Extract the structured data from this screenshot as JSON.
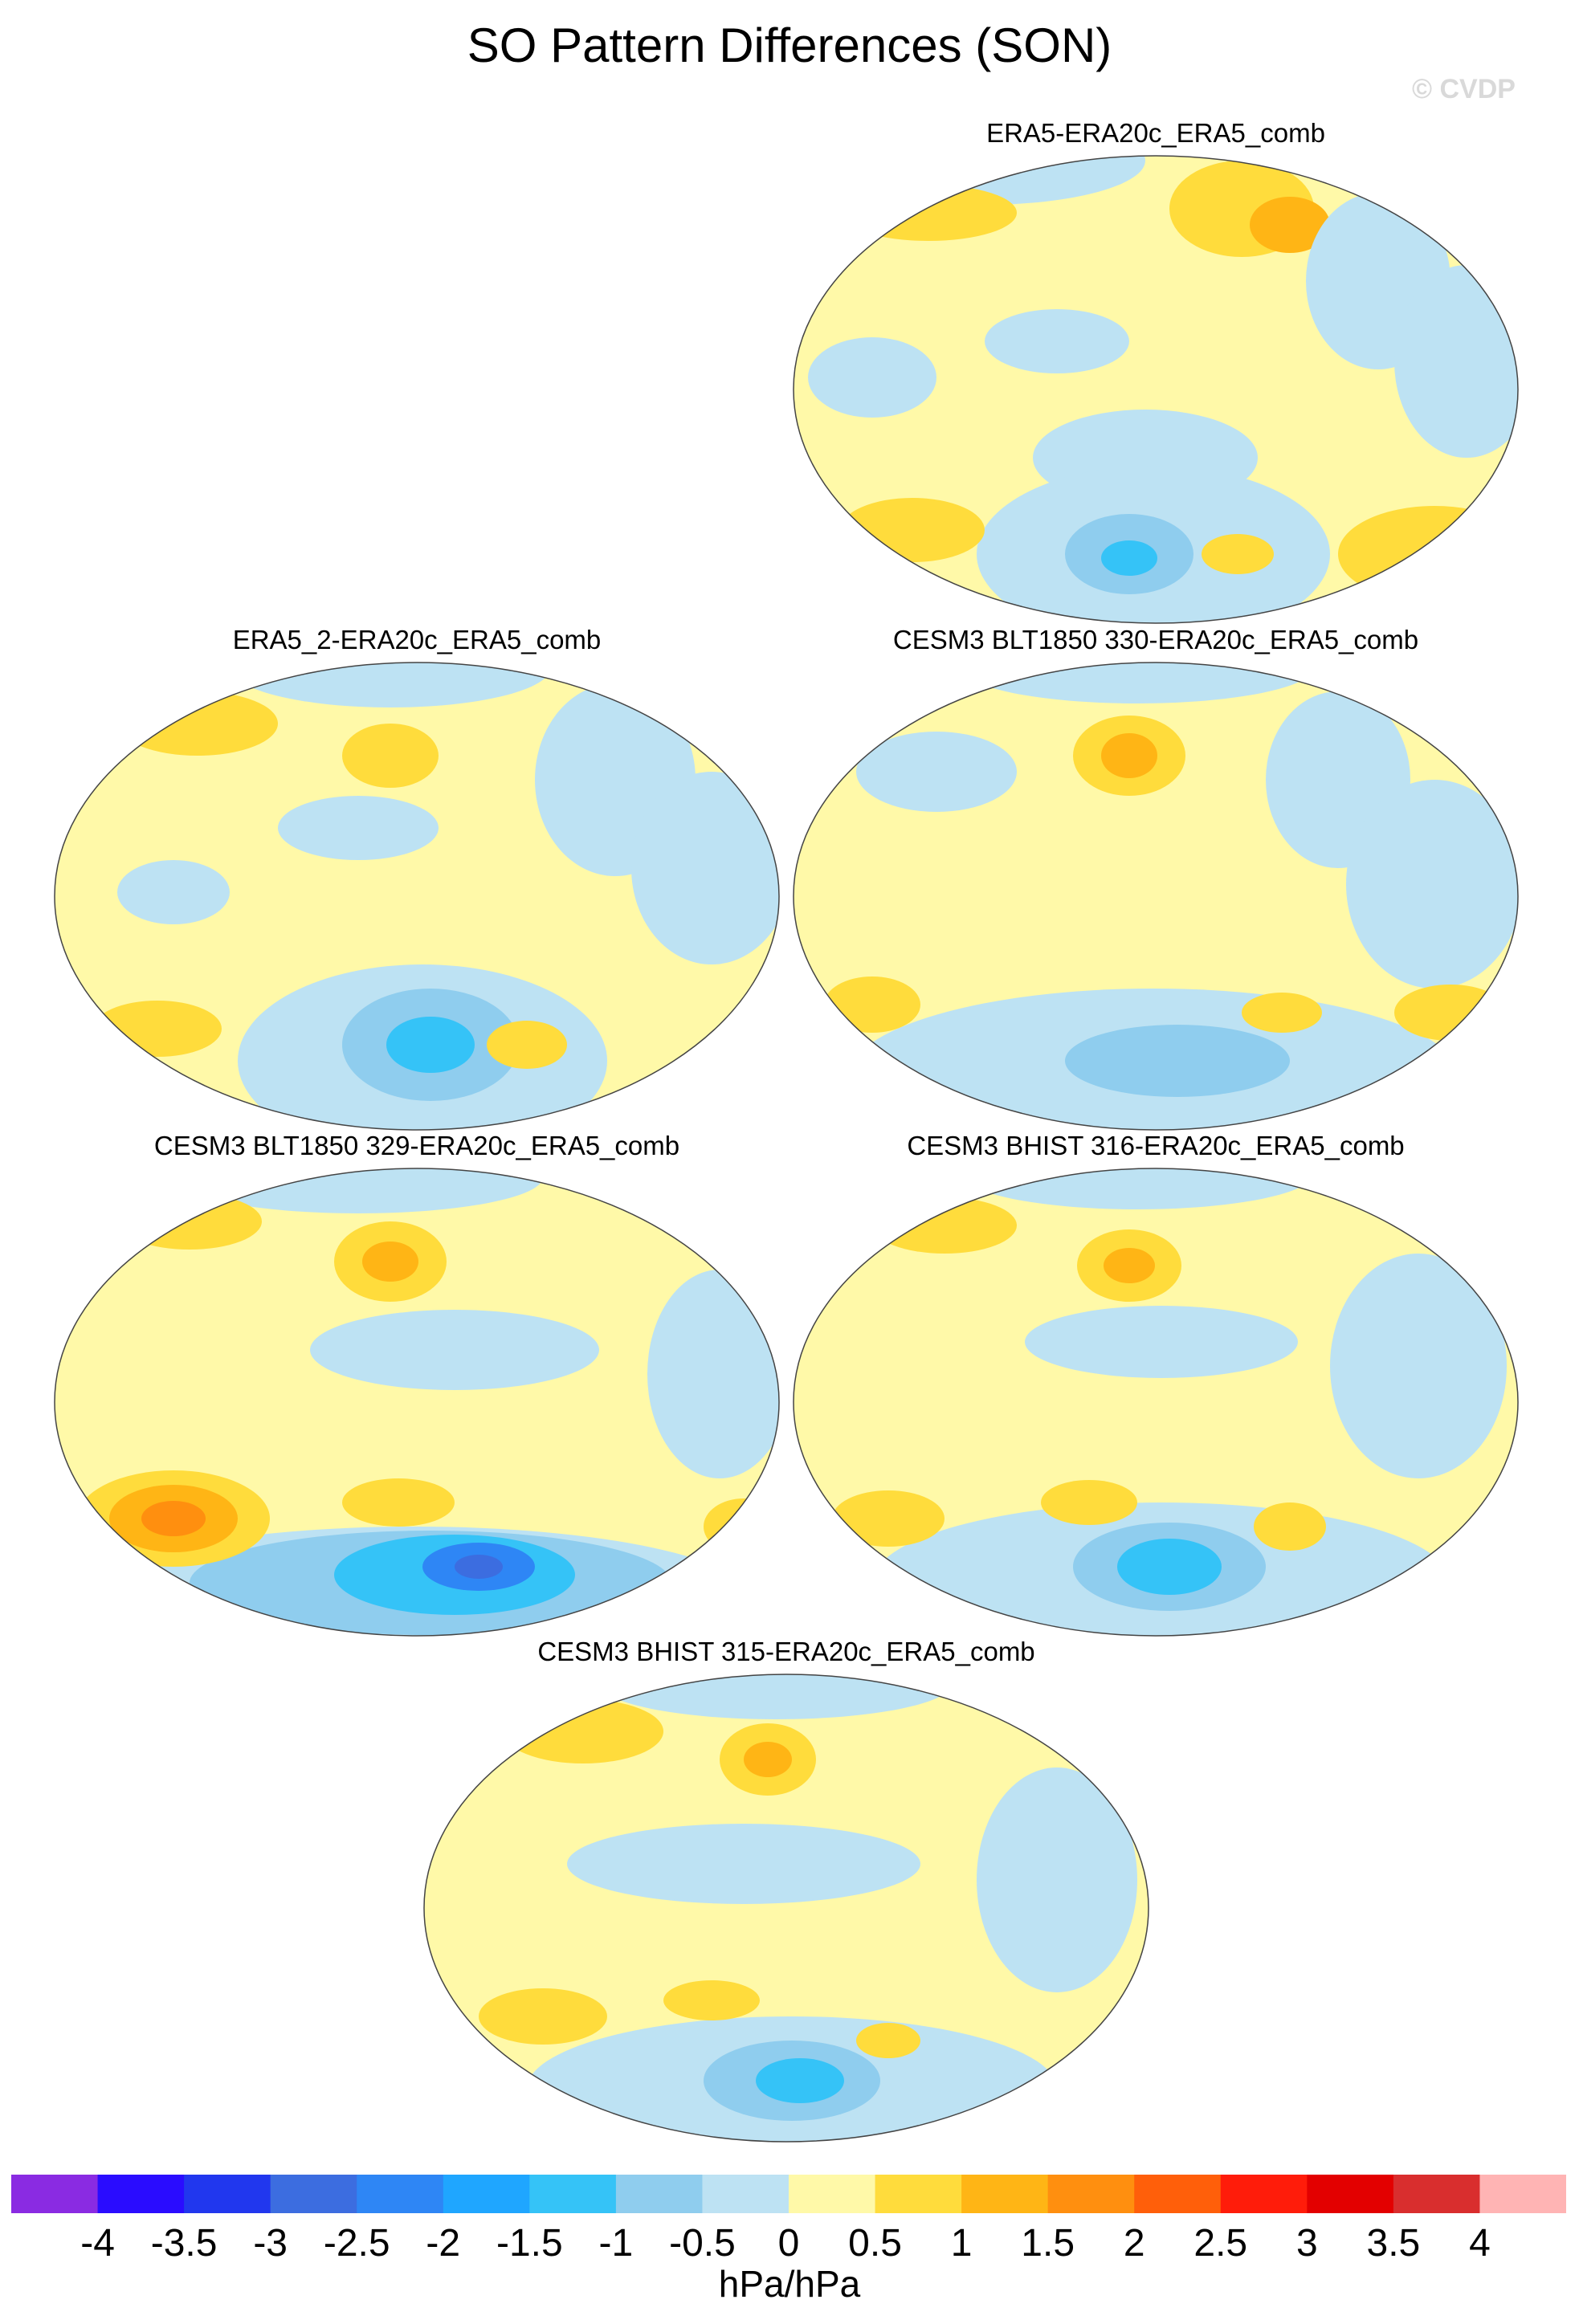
{
  "title": "SO Pattern Differences (SON)",
  "watermark": "© CVDP",
  "panels": [
    {
      "label": "ERA5-ERA20c_ERA5_comb",
      "dominant_field": "positive-light",
      "features": [
        "negative low east of Drake Passage",
        "positive highs over North Pacific and Kamchatka",
        "negative over Atlantic and Arctic"
      ]
    },
    {
      "label": "ERA5_2-ERA20c_ERA5_comb",
      "dominant_field": "positive-light",
      "features": [
        "negative low in south Pacific",
        "positive high near Aleutians"
      ]
    },
    {
      "label": "CESM3 BLT1850 330-ERA20c_ERA5_comb",
      "dominant_field": "positive-light",
      "features": [
        "positive high over Aleutians",
        "negative over Southern Ocean"
      ]
    },
    {
      "label": "CESM3 BLT1850 329-ERA20c_ERA5_comb",
      "dominant_field": "positive-light",
      "features": [
        "strong positive high south of Australia",
        "strong negative low in Amundsen Sea"
      ]
    },
    {
      "label": "CESM3 BHIST 316-ERA20c_ERA5_comb",
      "dominant_field": "positive-light",
      "features": [
        "positive high over Aleutians",
        "negative low in south Pacific"
      ]
    },
    {
      "label": "CESM3 BHIST 315-ERA20c_ERA5_comb",
      "dominant_field": "positive-light",
      "features": [
        "positive high over Bering Sea",
        "negative low in south Pacific"
      ]
    }
  ],
  "colorbar": {
    "colors": [
      "#8a2be2",
      "#2a0cff",
      "#2137ee",
      "#3c6de0",
      "#2e86f5",
      "#1fa6ff",
      "#35c3f7",
      "#8fcdee",
      "#bde2f3",
      "#fff9a8",
      "#ffdc3c",
      "#ffb515",
      "#ff8f0f",
      "#ff5f0a",
      "#ff1c0a",
      "#e30000",
      "#d92e2e",
      "#ffb4b4"
    ],
    "ticks": [
      "-4",
      "-3.5",
      "-3",
      "-2.5",
      "-2",
      "-1.5",
      "-1",
      "-0.5",
      "0",
      "0.5",
      "1",
      "1.5",
      "2",
      "2.5",
      "3",
      "3.5",
      "4"
    ],
    "units": "hPa/hPa"
  }
}
